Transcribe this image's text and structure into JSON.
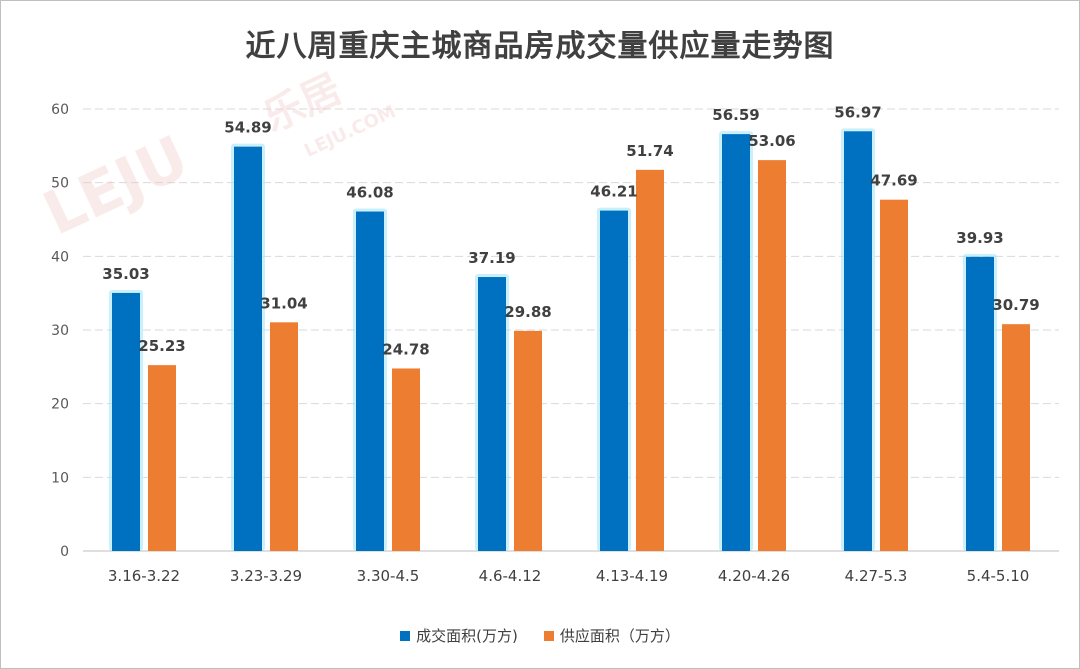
{
  "chart_data": {
    "type": "bar",
    "title": "近八周重庆主城商品房成交量供应量走势图",
    "categories": [
      "3.16-3.22",
      "3.23-3.29",
      "3.30-4.5",
      "4.6-4.12",
      "4.13-4.19",
      "4.20-4.26",
      "4.27-5.3",
      "5.4-5.10"
    ],
    "series": [
      {
        "name": "成交面积(万方)",
        "color": "#0070C0",
        "values": [
          35.03,
          54.89,
          46.08,
          37.19,
          46.21,
          56.59,
          56.97,
          39.93
        ]
      },
      {
        "name": "供应面积（万方）",
        "color": "#ED7D31",
        "values": [
          25.23,
          31.04,
          24.78,
          29.88,
          51.74,
          53.06,
          47.69,
          30.79
        ]
      }
    ],
    "ylim": [
      0,
      60
    ],
    "yticks": [
      0,
      10,
      20,
      30,
      40,
      50,
      60
    ],
    "grid": true,
    "legend": "bottom"
  },
  "watermark": {
    "logo": "LEJU",
    "brand": "乐居",
    "site": "LEJU.COM"
  }
}
